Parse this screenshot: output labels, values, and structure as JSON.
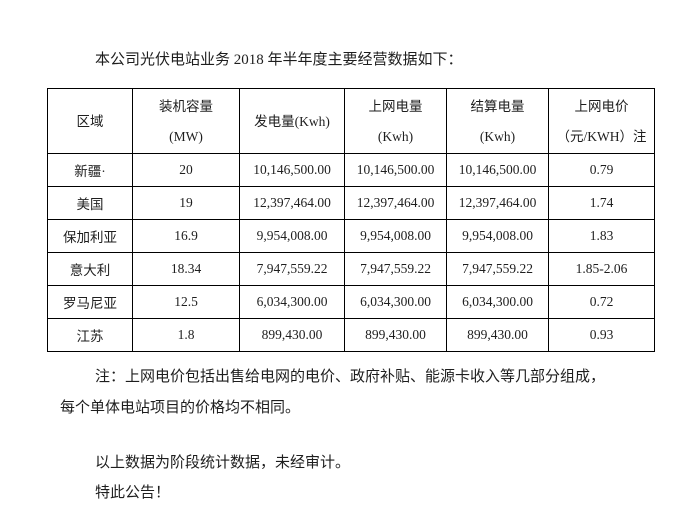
{
  "document": {
    "intro": "本公司光伏电站业务 2018 年半年度主要经营数据如下：",
    "note_line1": "注：上网电价包括出售给电网的电价、政府补贴、能源卡收入等几部分组成，",
    "note_line2": "每个单体电站项目的价格均不相同。",
    "footer_line1": "以上数据为阶段统计数据，未经审计。",
    "footer_line2": "特此公告！"
  },
  "table": {
    "headers": [
      {
        "line1": "区域",
        "line2": ""
      },
      {
        "line1": "装机容量",
        "line2": "(MW)"
      },
      {
        "line1": "发电量(Kwh)",
        "line2": ""
      },
      {
        "line1": "上网电量",
        "line2": "(Kwh)"
      },
      {
        "line1": "结算电量",
        "line2": "(Kwh)"
      },
      {
        "line1": "上网电价",
        "line2": "（元/KWH）注"
      }
    ],
    "rows": [
      [
        "新疆·",
        "20",
        "10,146,500.00",
        "10,146,500.00",
        "10,146,500.00",
        "0.79"
      ],
      [
        "美国",
        "19",
        "12,397,464.00",
        "12,397,464.00",
        "12,397,464.00",
        "1.74"
      ],
      [
        "保加利亚",
        "16.9",
        "9,954,008.00",
        "9,954,008.00",
        "9,954,008.00",
        "1.83"
      ],
      [
        "意大利",
        "18.34",
        "7,947,559.22",
        "7,947,559.22",
        "7,947,559.22",
        "1.85-2.06"
      ],
      [
        "罗马尼亚",
        "12.5",
        "6,034,300.00",
        "6,034,300.00",
        "6,034,300.00",
        "0.72"
      ],
      [
        "江苏",
        "1.8",
        "899,430.00",
        "899,430.00",
        "899,430.00",
        "0.93"
      ]
    ]
  }
}
